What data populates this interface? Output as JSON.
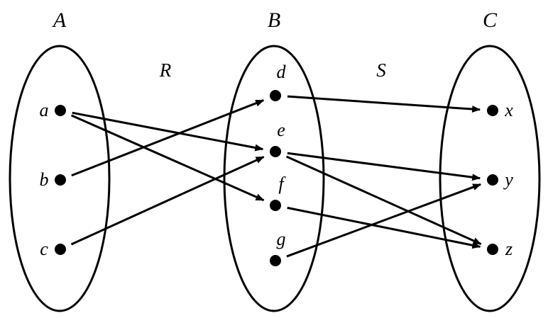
{
  "sets": [
    {
      "label": "A",
      "elements": [
        "a",
        "b",
        "c"
      ]
    },
    {
      "label": "B",
      "elements": [
        "d",
        "e",
        "f",
        "g"
      ]
    },
    {
      "label": "C",
      "elements": [
        "x",
        "y",
        "z"
      ]
    }
  ],
  "relations": [
    {
      "label": "R",
      "from": "A",
      "to": "B",
      "pairs": [
        [
          "a",
          "e"
        ],
        [
          "a",
          "f"
        ],
        [
          "b",
          "d"
        ],
        [
          "c",
          "e"
        ]
      ]
    },
    {
      "label": "S",
      "from": "B",
      "to": "C",
      "pairs": [
        [
          "d",
          "x"
        ],
        [
          "e",
          "y"
        ],
        [
          "e",
          "z"
        ],
        [
          "f",
          "z"
        ],
        [
          "g",
          "y"
        ]
      ]
    }
  ],
  "colors": {
    "ink": "#000000",
    "background": "#ffffff"
  }
}
